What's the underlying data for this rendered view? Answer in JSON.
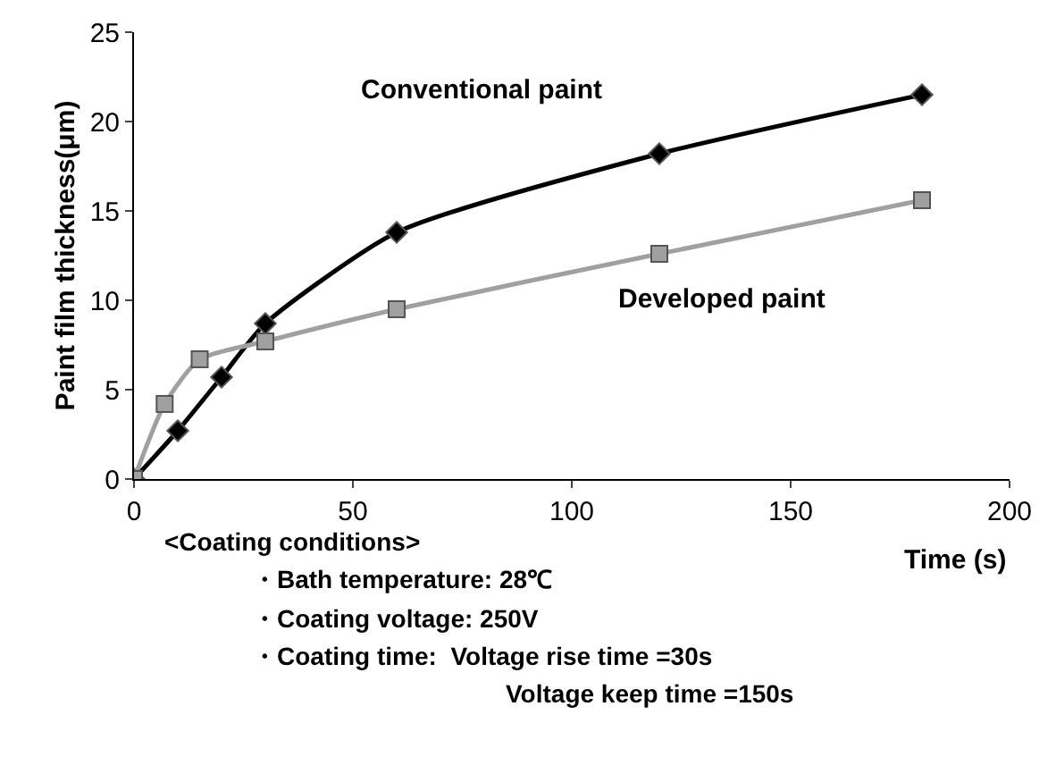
{
  "chart_data": {
    "type": "line",
    "xlabel": "Time (s)",
    "ylabel": "Paint film thickness(μm)",
    "series": [
      {
        "name": "Conventional paint",
        "color": "#000000",
        "marker": "diamond",
        "x": [
          0,
          10,
          20,
          30,
          60,
          120,
          180
        ],
        "values": [
          0,
          2.7,
          5.7,
          8.7,
          13.8,
          18.2,
          21.5
        ]
      },
      {
        "name": "Developed paint",
        "color": "#a0a0a0",
        "marker": "square",
        "x": [
          0,
          7,
          15,
          30,
          60,
          120,
          180
        ],
        "values": [
          0,
          4.2,
          6.7,
          7.7,
          9.5,
          12.6,
          15.6
        ]
      }
    ],
    "xlim": [
      0,
      200
    ],
    "xticks": [
      0,
      50,
      100,
      150,
      200
    ],
    "ylim": [
      0,
      25
    ],
    "yticks": [
      0,
      5,
      10,
      15,
      20,
      25
    ],
    "legend": false,
    "line_style": "solid",
    "annotations": [
      "<Coating conditions>",
      "・Bath temperature: 28℃",
      "・Coating voltage: 250V",
      "・Coating time:  Voltage rise time =30s",
      "Voltage keep time =150s"
    ]
  }
}
